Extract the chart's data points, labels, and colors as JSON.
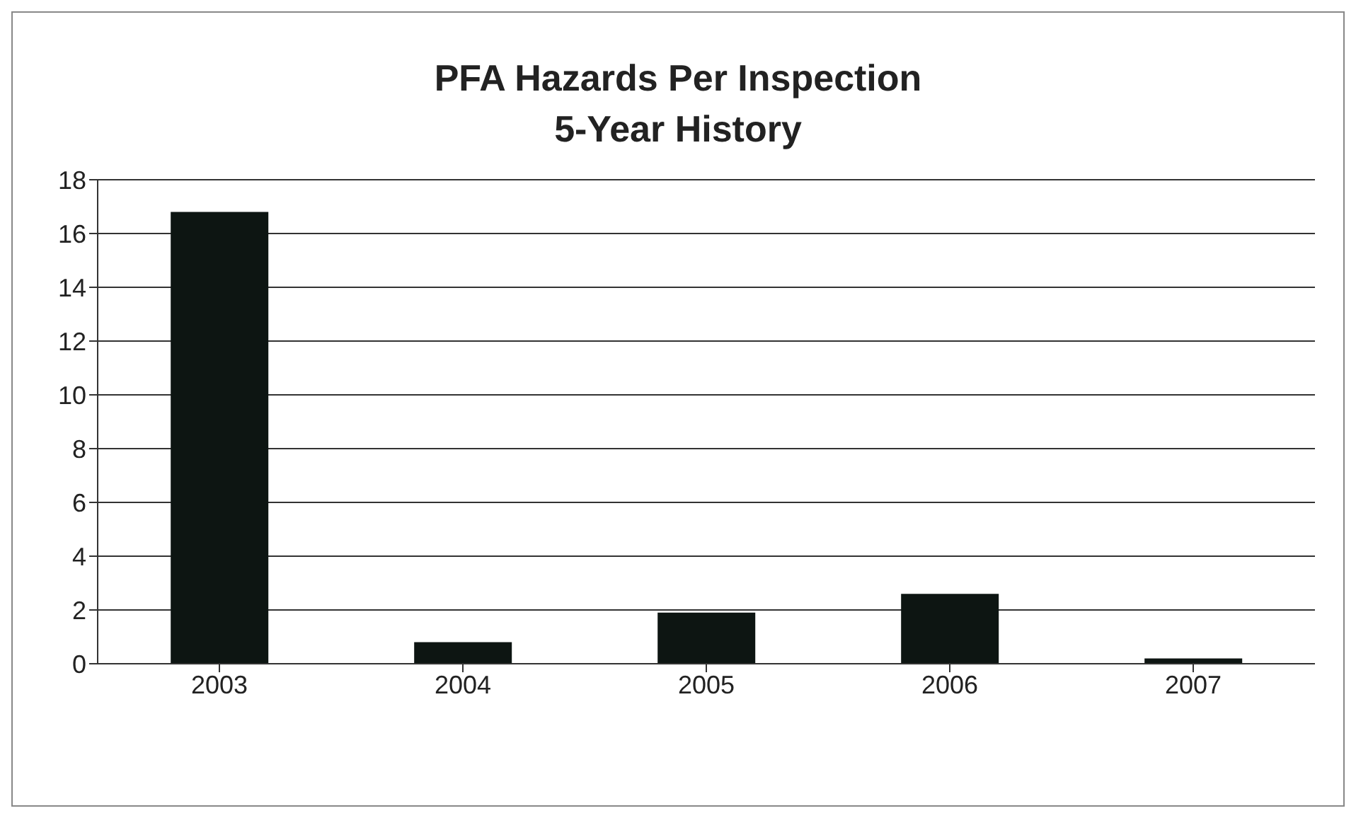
{
  "chart_data": {
    "type": "bar",
    "title": "PFA Hazards Per Inspection\n5-Year History",
    "categories": [
      "2003",
      "2004",
      "2005",
      "2006",
      "2007"
    ],
    "values": [
      16.8,
      0.8,
      1.9,
      2.6,
      0.2
    ],
    "color": "#0d1512",
    "ylim": [
      0,
      18
    ],
    "yticks": [
      0,
      2,
      4,
      6,
      8,
      10,
      12,
      14,
      16,
      18
    ],
    "grid": "y",
    "legend": false
  }
}
